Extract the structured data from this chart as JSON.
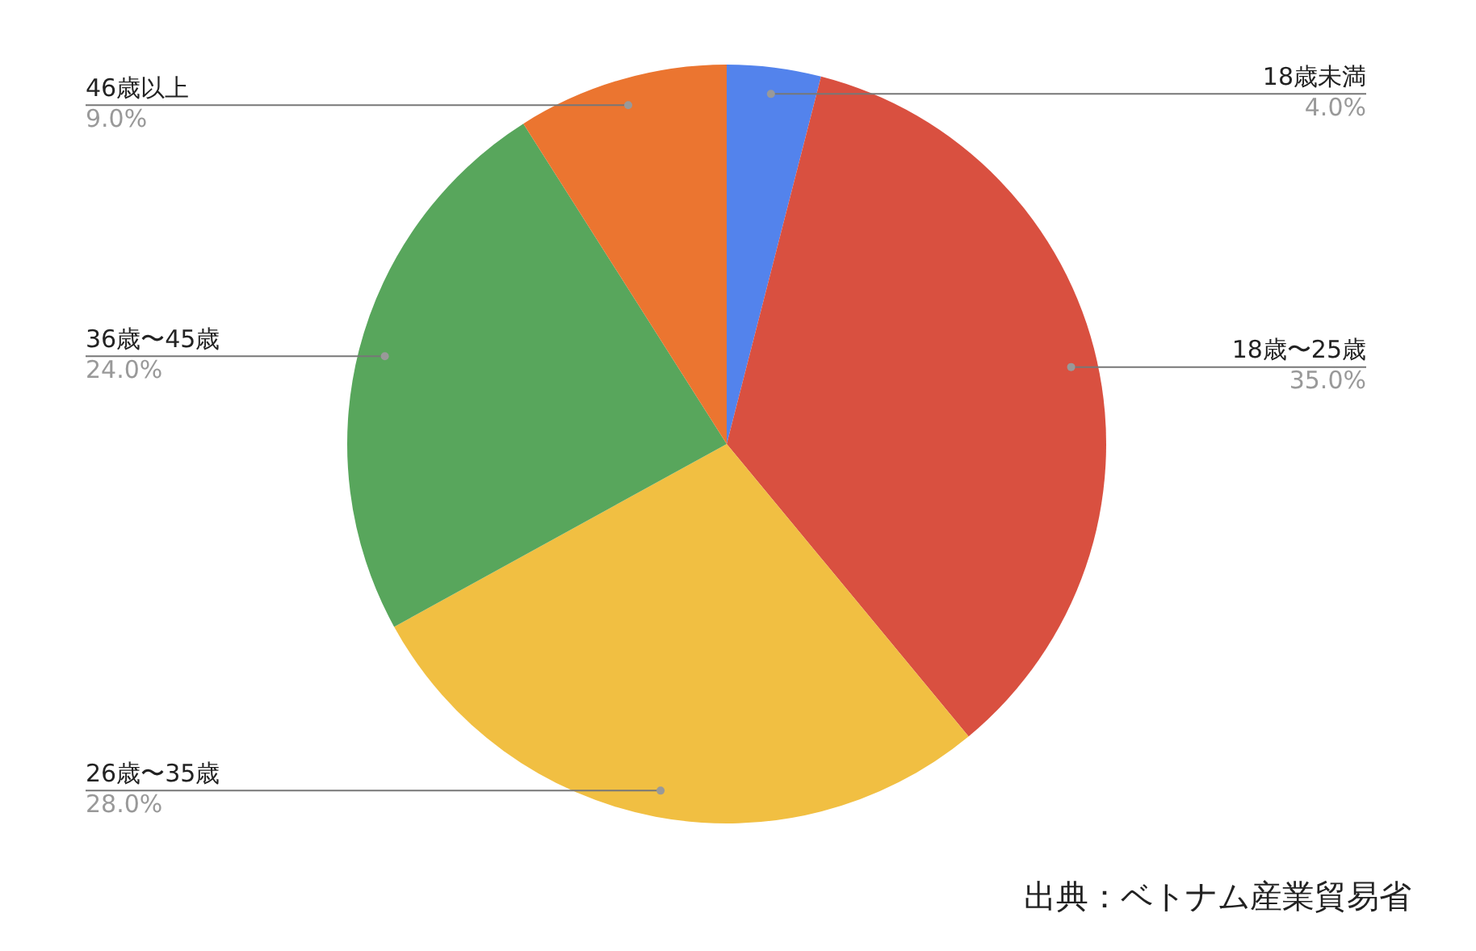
{
  "chart_data": {
    "type": "pie",
    "categories": [
      "18歳未満",
      "18歳〜25歳",
      "26歳〜35歳",
      "36歳〜45歳",
      "46歳以上"
    ],
    "values": [
      4.0,
      35.0,
      28.0,
      24.0,
      9.0
    ],
    "value_labels": [
      "4.0%",
      "35.0%",
      "28.0%",
      "24.0%",
      "9.0%"
    ],
    "colors": [
      "#5383ec",
      "#d95040",
      "#f1bf42",
      "#58a65c",
      "#eb7530"
    ],
    "legend": false,
    "annotations": [
      "出典：ベトナム産業貿易省"
    ]
  }
}
